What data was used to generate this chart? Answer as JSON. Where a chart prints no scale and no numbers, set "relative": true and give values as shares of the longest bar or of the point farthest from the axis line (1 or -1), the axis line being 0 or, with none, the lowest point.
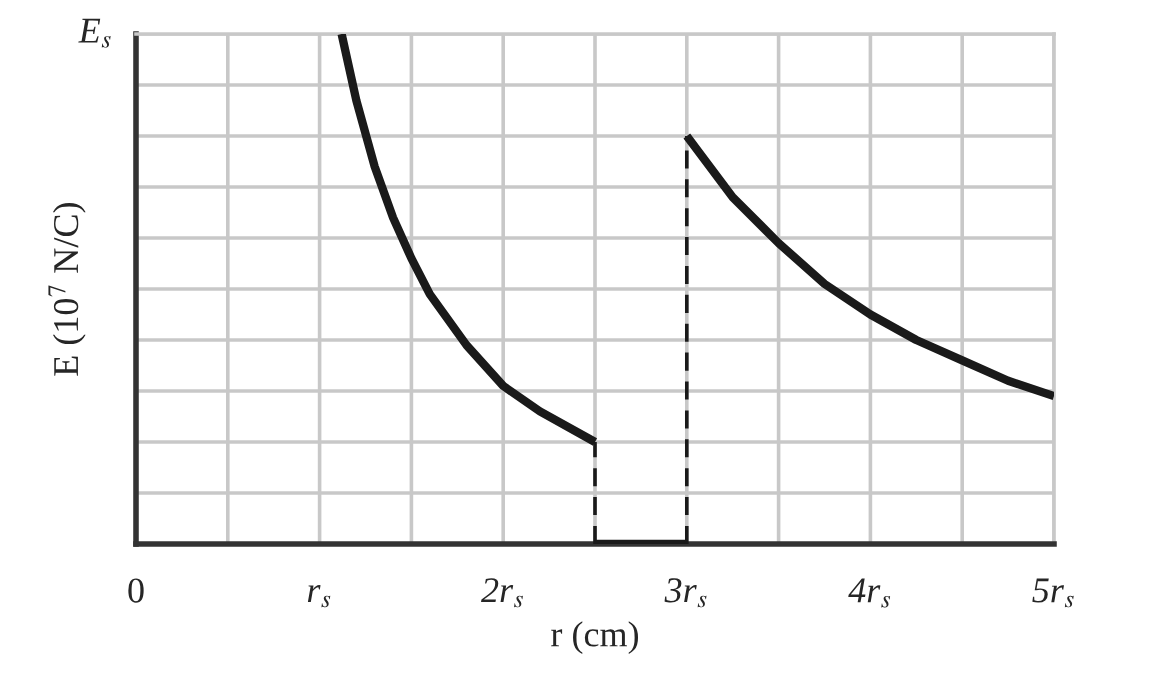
{
  "chart_data": {
    "type": "line",
    "xlabel": "r (cm)",
    "ylabel": "E (10$^{7}$ N/C)",
    "relative": true,
    "annotations": [
      "E$_{s}$"
    ],
    "xlim": [
      0,
      5
    ],
    "xticks": [
      {
        "value": 0,
        "label": "0"
      },
      {
        "value": 0.5,
        "label": null
      },
      {
        "value": 1,
        "label": "r$_{s}$"
      },
      {
        "value": 1.5,
        "label": null
      },
      {
        "value": 2,
        "label": "2r$_{s}$"
      },
      {
        "value": 2.5,
        "label": null
      },
      {
        "value": 3,
        "label": "3r$_{s}$"
      },
      {
        "value": 3.5,
        "label": null
      },
      {
        "value": 4,
        "label": "4r$_{s}$"
      },
      {
        "value": 4.5,
        "label": null
      },
      {
        "value": 5,
        "label": "5r$_{s}$"
      }
    ],
    "grid": true,
    "line_style": "solid",
    "series": [
      {
        "color": "#1a1a1a",
        "x": [
          1.12,
          1.2,
          1.3,
          1.4,
          1.5,
          1.6,
          1.8,
          2.0,
          2.2,
          2.5
        ],
        "values": [
          1.0,
          0.87,
          0.74,
          0.64,
          0.56,
          0.49,
          0.39,
          0.31,
          0.26,
          0.2
        ]
      },
      {
        "color": "#1a1a1a",
        "x": [
          2.5,
          3
        ],
        "values": [
          0,
          0
        ]
      },
      {
        "color": "#1a1a1a",
        "x": [
          3,
          3.25,
          3.5,
          3.75,
          4,
          4.25,
          4.5,
          4.75,
          5
        ],
        "values": [
          0.8,
          0.68,
          0.59,
          0.51,
          0.45,
          0.4,
          0.36,
          0.32,
          0.29
        ]
      },
      {
        "color": "#1a1a1a",
        "line_style": "dashed",
        "x": [
          2.5,
          2.5
        ],
        "values": [
          0,
          0.2
        ]
      },
      {
        "color": "#1a1a1a",
        "line_style": "dashed",
        "x": [
          3,
          3
        ],
        "values": [
          0,
          0.8
        ]
      }
    ]
  }
}
